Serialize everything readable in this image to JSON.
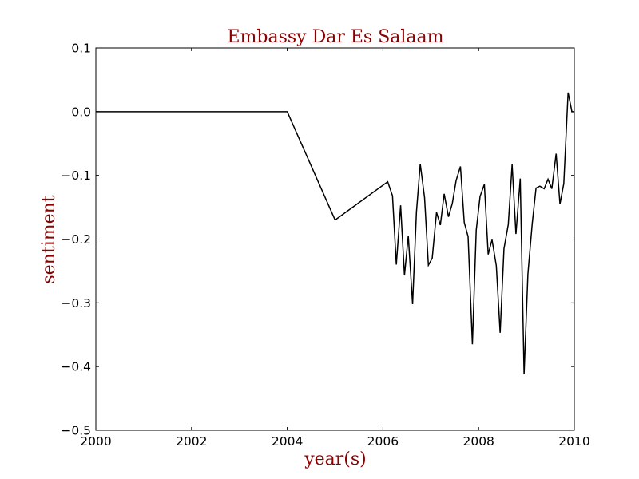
{
  "colors": {
    "title": "#8b0000",
    "axis_label": "#8b0000",
    "line": "#000000",
    "axes": "#000000"
  },
  "chart_data": {
    "type": "line",
    "title": "Embassy Dar Es Salaam",
    "xlabel": "year(s)",
    "ylabel": "sentiment",
    "xlim": [
      2000,
      2010
    ],
    "ylim": [
      -0.5,
      0.1
    ],
    "xticks": [
      2000,
      2002,
      2004,
      2006,
      2008,
      2010
    ],
    "xtick_labels": [
      "2000",
      "2002",
      "2004",
      "2006",
      "2008",
      "2010"
    ],
    "yticks": [
      0.1,
      0.0,
      -0.1,
      -0.2,
      -0.3,
      -0.4,
      -0.5
    ],
    "ytick_labels": [
      "0.1",
      "0.0",
      "−0.1",
      "−0.2",
      "−0.3",
      "−0.4",
      "−0.5"
    ],
    "grid": false,
    "series": [
      {
        "x": [
          2000,
          2004,
          2005,
          2006.1,
          2006.2,
          2006.28,
          2006.37,
          2006.45,
          2006.53,
          2006.62,
          2006.7,
          2006.78,
          2006.87,
          2006.95,
          2007.03,
          2007.12,
          2007.2,
          2007.28,
          2007.37,
          2007.45,
          2007.53,
          2007.62,
          2007.7,
          2007.78,
          2007.87,
          2007.95,
          2008.03,
          2008.12,
          2008.2,
          2008.28,
          2008.37,
          2008.45,
          2008.53,
          2008.62,
          2008.7,
          2008.78,
          2008.87,
          2008.95,
          2009.03,
          2009.12,
          2009.2,
          2009.28,
          2009.37,
          2009.45,
          2009.53,
          2009.62,
          2009.7,
          2009.78,
          2009.87,
          2009.95,
          2010
        ],
        "y": [
          0.0,
          0.0,
          -0.17,
          -0.11,
          -0.132,
          -0.24,
          -0.147,
          -0.257,
          -0.195,
          -0.302,
          -0.158,
          -0.082,
          -0.135,
          -0.241,
          -0.23,
          -0.158,
          -0.178,
          -0.129,
          -0.165,
          -0.144,
          -0.108,
          -0.086,
          -0.174,
          -0.196,
          -0.365,
          -0.186,
          -0.133,
          -0.114,
          -0.224,
          -0.201,
          -0.242,
          -0.347,
          -0.215,
          -0.177,
          -0.083,
          -0.192,
          -0.105,
          -0.412,
          -0.255,
          -0.176,
          -0.12,
          -0.117,
          -0.121,
          -0.106,
          -0.121,
          -0.066,
          -0.145,
          -0.113,
          0.03,
          0.0,
          0.0
        ]
      }
    ]
  }
}
